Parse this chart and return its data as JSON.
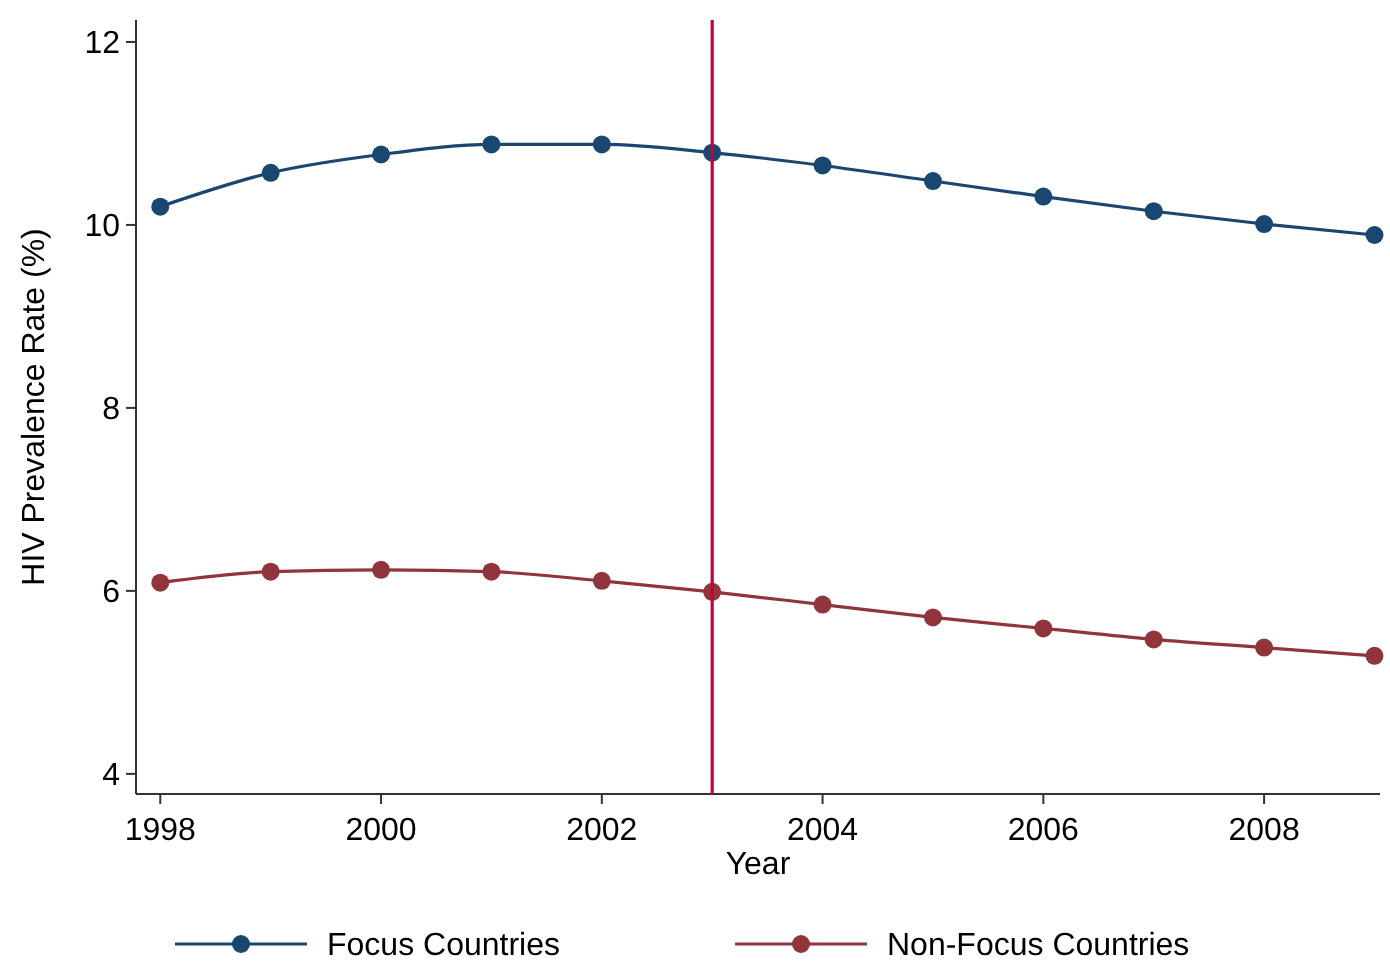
{
  "chart_data": {
    "type": "line",
    "xlabel": "Year",
    "ylabel": "HIV Prevalence Rate (%)",
    "x": [
      1998,
      1999,
      2000,
      2001,
      2002,
      2003,
      2004,
      2005,
      2006,
      2007,
      2008,
      2009
    ],
    "series": [
      {
        "name": "Focus Countries",
        "color": "#1a476f",
        "values": [
          10.2,
          10.57,
          10.77,
          10.88,
          10.88,
          10.79,
          10.65,
          10.48,
          10.31,
          10.15,
          10.01,
          9.89
        ]
      },
      {
        "name": "Non-Focus Countries",
        "color": "#90353b",
        "values": [
          6.09,
          6.21,
          6.23,
          6.21,
          6.11,
          5.99,
          5.85,
          5.71,
          5.59,
          5.47,
          5.38,
          5.29
        ]
      }
    ],
    "xlim": [
      1997.78,
      2009.05
    ],
    "xticks": [
      1998,
      2000,
      2002,
      2004,
      2006,
      2008
    ],
    "ylim": [
      3.78,
      12.24
    ],
    "yticks": [
      4,
      6,
      8,
      10,
      12
    ],
    "ref_lines": [
      {
        "axis": "x",
        "value": 2003,
        "color": "#c10534"
      }
    ],
    "marker": "circle",
    "line_style": "solid",
    "grid": false,
    "legend": "bottom"
  }
}
